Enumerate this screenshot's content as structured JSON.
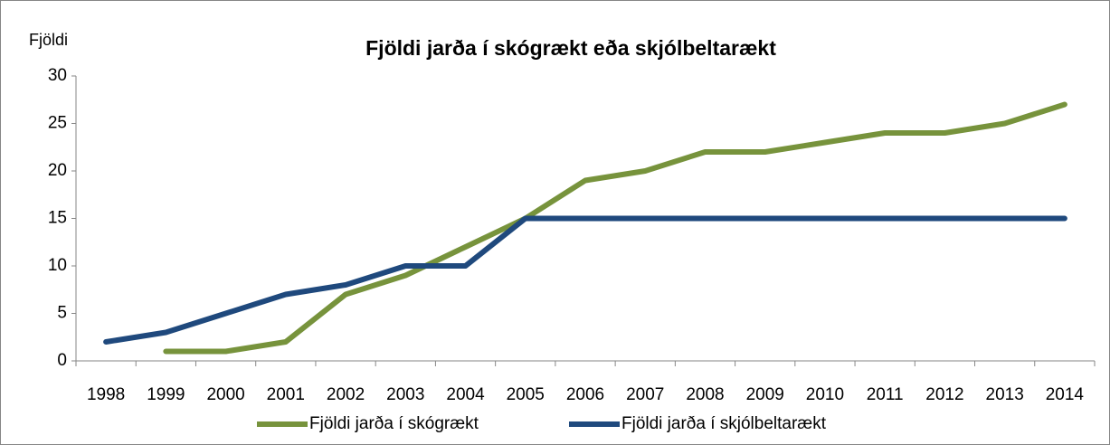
{
  "chart_data": {
    "type": "line",
    "title": "Fjöldi jarða í skógrækt eða skjólbeltarækt",
    "y_label": "Fjöldi",
    "categories": [
      "1998",
      "1999",
      "2000",
      "2001",
      "2002",
      "2003",
      "2004",
      "2005",
      "2006",
      "2007",
      "2008",
      "2009",
      "2010",
      "2011",
      "2012",
      "2013",
      "2014"
    ],
    "series": [
      {
        "name": "Fjöldi jarða í skógrækt",
        "color": "#77933c",
        "values": [
          null,
          1,
          1,
          2,
          7,
          9,
          12,
          15,
          19,
          20,
          22,
          22,
          23,
          24,
          24,
          25,
          27
        ]
      },
      {
        "name": "Fjöldi jarða í skjólbeltarækt",
        "color": "#1f497d",
        "values": [
          2,
          3,
          5,
          7,
          8,
          10,
          10,
          15,
          15,
          15,
          15,
          15,
          15,
          15,
          15,
          15,
          15
        ]
      }
    ],
    "ylim": [
      0,
      30
    ],
    "yticks": [
      0,
      5,
      10,
      15,
      20,
      25,
      30
    ],
    "grid": false,
    "legend": "bottom"
  }
}
